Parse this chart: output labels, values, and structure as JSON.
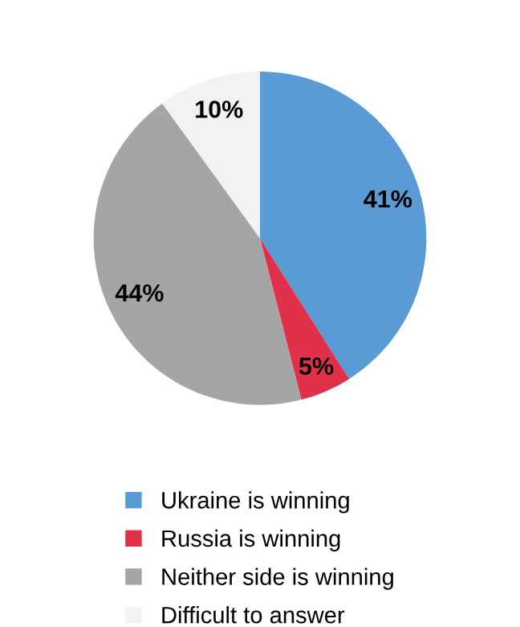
{
  "chart_data": {
    "type": "pie",
    "categories": [
      "Ukraine is winning",
      "Russia is winning",
      "Neither side is winning",
      "Difficult to answer"
    ],
    "values": [
      41,
      5,
      44,
      10
    ],
    "colors": [
      "#5b9bd5",
      "#e0304a",
      "#a5a5a5",
      "#f2f2f2"
    ],
    "value_labels": [
      "41%",
      "5%",
      "44%",
      "10%"
    ],
    "legend": "bottom"
  }
}
